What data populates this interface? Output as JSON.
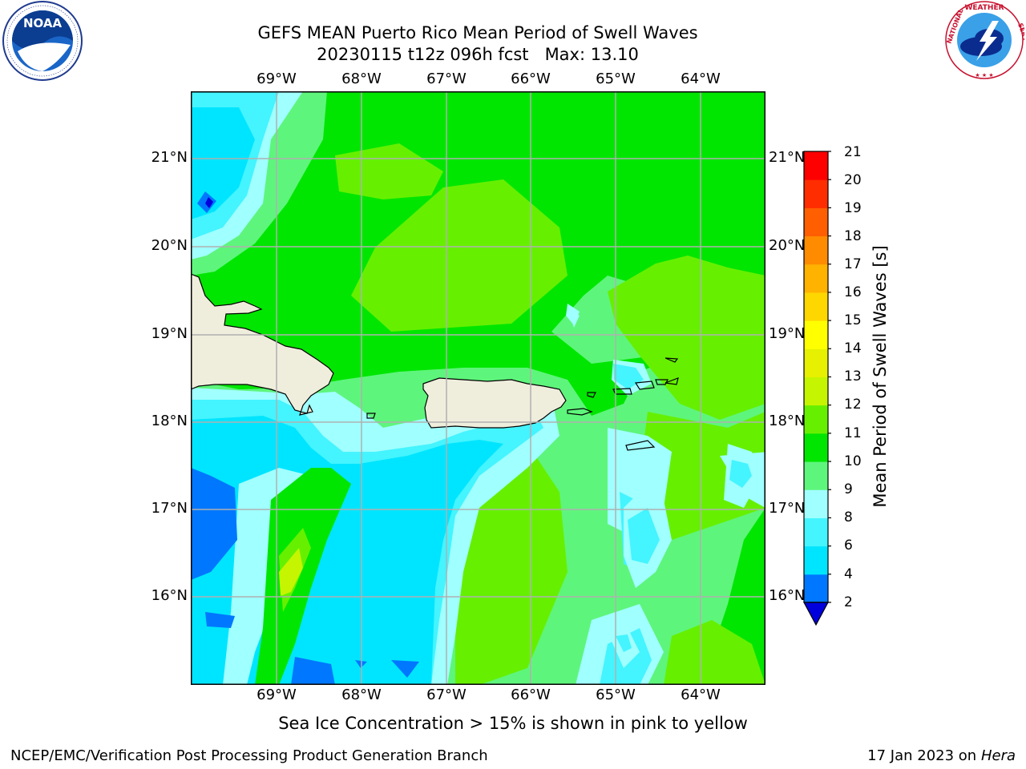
{
  "header": {
    "title_line1": "GEFS MEAN Puerto Rico Mean Period of Swell Waves",
    "title_line2": "20230115 t12z 096h fcst   Max: 13.10"
  },
  "logos": {
    "left": {
      "name": "NOAA",
      "ring_text": "NATIONAL OCEANIC AND ATMOSPHERIC ADMINISTRATION · U.S. DEPARTMENT OF COMMERCE"
    },
    "right": {
      "name": "NATIONAL WEATHER SERVICE"
    }
  },
  "map": {
    "lon_labels": [
      "69°W",
      "68°W",
      "67°W",
      "66°W",
      "65°W",
      "64°W"
    ],
    "lat_labels": [
      "21°N",
      "20°N",
      "19°N",
      "18°N",
      "17°N",
      "16°N"
    ],
    "lon_range": [
      -70.0,
      -63.3
    ],
    "lat_range": [
      15.0,
      21.8
    ],
    "land_color": "#efeddc",
    "grid_color": "#b0b0b0"
  },
  "colorbar": {
    "title": "Mean Period of Swell Waves [s]",
    "levels": [
      "21",
      "20",
      "19",
      "18",
      "17",
      "16",
      "15",
      "14",
      "13",
      "12",
      "11",
      "10",
      "9",
      "8",
      "6",
      "4",
      "2"
    ],
    "colors": [
      "#0000dd",
      "#0077ff",
      "#00e5ff",
      "#44f4ff",
      "#a0ffff",
      "#5ef57c",
      "#00e600",
      "#66f000",
      "#c5f500",
      "#e6f000",
      "#ffff00",
      "#ffd700",
      "#ffb200",
      "#ff8c00",
      "#ff5f00",
      "#ff2d00",
      "#ff0000"
    ]
  },
  "subtitle": "Sea Ice Concentration > 15% is shown in pink to yellow",
  "footer": {
    "left": "NCEP/EMC/Verification Post Processing Product Generation Branch",
    "date": "17 Jan 2023 on ",
    "host": "Hera"
  }
}
